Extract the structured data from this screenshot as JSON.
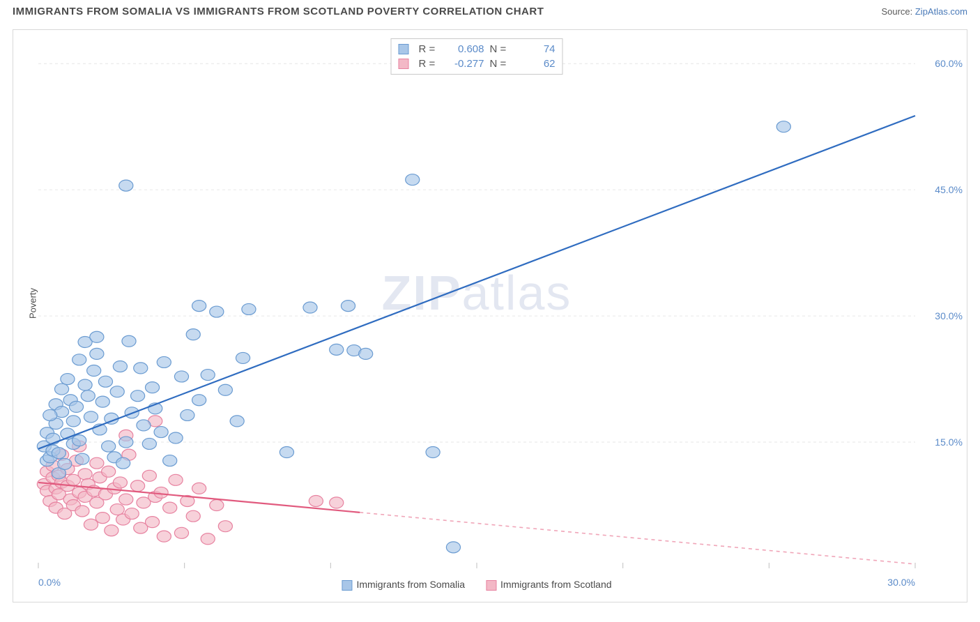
{
  "header": {
    "title": "IMMIGRANTS FROM SOMALIA VS IMMIGRANTS FROM SCOTLAND POVERTY CORRELATION CHART",
    "source_prefix": "Source: ",
    "source_link": "ZipAtlas.com"
  },
  "watermark": {
    "zip": "ZIP",
    "atlas": "atlas"
  },
  "chart": {
    "type": "scatter",
    "ylabel": "Poverty",
    "xlim": [
      0,
      30
    ],
    "ylim": [
      0,
      63
    ],
    "x_ticks": [
      {
        "pos": 0,
        "label": "0.0%"
      },
      {
        "pos": 5,
        "label": ""
      },
      {
        "pos": 10,
        "label": ""
      },
      {
        "pos": 15,
        "label": ""
      },
      {
        "pos": 20,
        "label": ""
      },
      {
        "pos": 25,
        "label": ""
      },
      {
        "pos": 30,
        "label": "30.0%"
      }
    ],
    "y_ticks": [
      {
        "pos": 15,
        "label": "15.0%"
      },
      {
        "pos": 30,
        "label": "30.0%"
      },
      {
        "pos": 45,
        "label": "45.0%"
      },
      {
        "pos": 60,
        "label": "60.0%"
      }
    ],
    "grid_color": "#e6e6e6",
    "background_color": "#ffffff",
    "series": [
      {
        "name": "Immigrants from Somalia",
        "color_fill": "#a8c6e8",
        "color_stroke": "#6a9bd1",
        "line_color": "#2f6cc0",
        "line_dash_color": "#2f6cc0",
        "R": "0.608",
        "N": "74",
        "trend": {
          "x1": 0,
          "y1": 14.2,
          "x2": 30,
          "y2": 53.8,
          "solid_until_x": 30
        },
        "points": [
          [
            0.2,
            14.5
          ],
          [
            0.3,
            12.8
          ],
          [
            0.3,
            16.1
          ],
          [
            0.4,
            13.2
          ],
          [
            0.5,
            15.4
          ],
          [
            0.5,
            14.0
          ],
          [
            0.6,
            17.2
          ],
          [
            0.6,
            19.5
          ],
          [
            0.7,
            11.3
          ],
          [
            0.7,
            13.7
          ],
          [
            0.8,
            21.3
          ],
          [
            0.8,
            18.6
          ],
          [
            0.9,
            12.4
          ],
          [
            1.0,
            16.0
          ],
          [
            1.0,
            22.5
          ],
          [
            1.1,
            20.0
          ],
          [
            1.2,
            14.8
          ],
          [
            1.2,
            17.5
          ],
          [
            1.3,
            19.2
          ],
          [
            1.4,
            24.8
          ],
          [
            1.4,
            15.2
          ],
          [
            1.5,
            13.0
          ],
          [
            1.6,
            26.9
          ],
          [
            1.6,
            21.8
          ],
          [
            1.7,
            20.5
          ],
          [
            1.8,
            18.0
          ],
          [
            1.9,
            23.5
          ],
          [
            2.0,
            25.5
          ],
          [
            2.0,
            27.5
          ],
          [
            2.1,
            16.5
          ],
          [
            2.2,
            19.8
          ],
          [
            2.3,
            22.2
          ],
          [
            2.4,
            14.5
          ],
          [
            2.5,
            17.8
          ],
          [
            2.6,
            13.2
          ],
          [
            2.7,
            21.0
          ],
          [
            2.8,
            24.0
          ],
          [
            2.9,
            12.5
          ],
          [
            3.0,
            15.0
          ],
          [
            3.1,
            27.0
          ],
          [
            3.2,
            18.5
          ],
          [
            3.4,
            20.5
          ],
          [
            3.5,
            23.8
          ],
          [
            3.6,
            17.0
          ],
          [
            3.8,
            14.8
          ],
          [
            3.9,
            21.5
          ],
          [
            4.0,
            19.0
          ],
          [
            4.2,
            16.2
          ],
          [
            4.3,
            24.5
          ],
          [
            4.5,
            12.8
          ],
          [
            4.7,
            15.5
          ],
          [
            4.9,
            22.8
          ],
          [
            5.1,
            18.2
          ],
          [
            5.3,
            27.8
          ],
          [
            5.5,
            20.0
          ],
          [
            5.8,
            23.0
          ],
          [
            6.1,
            30.5
          ],
          [
            6.4,
            21.2
          ],
          [
            6.8,
            17.5
          ],
          [
            7.2,
            30.8
          ],
          [
            8.5,
            13.8
          ],
          [
            9.3,
            31.0
          ],
          [
            10.2,
            26.0
          ],
          [
            10.6,
            31.2
          ],
          [
            10.8,
            25.9
          ],
          [
            11.2,
            25.5
          ],
          [
            12.8,
            46.2
          ],
          [
            13.5,
            13.8
          ],
          [
            14.2,
            2.5
          ],
          [
            3.0,
            45.5
          ],
          [
            25.5,
            52.5
          ],
          [
            5.5,
            31.2
          ],
          [
            7.0,
            25.0
          ],
          [
            0.4,
            18.2
          ]
        ]
      },
      {
        "name": "Immigrants from Scotland",
        "color_fill": "#f3b8c6",
        "color_stroke": "#e782a0",
        "line_color": "#e15a7e",
        "line_dash_color": "#f0a5b8",
        "R": "-0.277",
        "N": "62",
        "trend": {
          "x1": 0,
          "y1": 10.2,
          "x2": 30,
          "y2": 0.5,
          "solid_until_x": 11
        },
        "points": [
          [
            0.2,
            10.0
          ],
          [
            0.3,
            9.2
          ],
          [
            0.3,
            11.5
          ],
          [
            0.4,
            8.0
          ],
          [
            0.5,
            10.8
          ],
          [
            0.5,
            12.2
          ],
          [
            0.6,
            9.5
          ],
          [
            0.6,
            7.2
          ],
          [
            0.7,
            11.0
          ],
          [
            0.7,
            8.8
          ],
          [
            0.8,
            10.2
          ],
          [
            0.8,
            13.5
          ],
          [
            0.9,
            6.5
          ],
          [
            1.0,
            9.8
          ],
          [
            1.0,
            11.8
          ],
          [
            1.1,
            8.2
          ],
          [
            1.2,
            10.5
          ],
          [
            1.2,
            7.5
          ],
          [
            1.3,
            12.8
          ],
          [
            1.4,
            9.0
          ],
          [
            1.4,
            14.5
          ],
          [
            1.5,
            6.8
          ],
          [
            1.6,
            11.2
          ],
          [
            1.6,
            8.5
          ],
          [
            1.7,
            10.0
          ],
          [
            1.8,
            5.2
          ],
          [
            1.9,
            9.2
          ],
          [
            2.0,
            12.5
          ],
          [
            2.0,
            7.8
          ],
          [
            2.1,
            10.8
          ],
          [
            2.2,
            6.0
          ],
          [
            2.3,
            8.8
          ],
          [
            2.4,
            11.5
          ],
          [
            2.5,
            4.5
          ],
          [
            2.6,
            9.5
          ],
          [
            2.7,
            7.0
          ],
          [
            2.8,
            10.2
          ],
          [
            2.9,
            5.8
          ],
          [
            3.0,
            8.2
          ],
          [
            3.1,
            13.5
          ],
          [
            3.2,
            6.5
          ],
          [
            3.4,
            9.8
          ],
          [
            3.5,
            4.8
          ],
          [
            3.6,
            7.8
          ],
          [
            3.8,
            11.0
          ],
          [
            3.9,
            5.5
          ],
          [
            4.0,
            8.5
          ],
          [
            4.2,
            9.0
          ],
          [
            4.3,
            3.8
          ],
          [
            4.5,
            7.2
          ],
          [
            4.7,
            10.5
          ],
          [
            4.9,
            4.2
          ],
          [
            5.1,
            8.0
          ],
          [
            5.3,
            6.2
          ],
          [
            5.5,
            9.5
          ],
          [
            5.8,
            3.5
          ],
          [
            6.1,
            7.5
          ],
          [
            6.4,
            5.0
          ],
          [
            4.0,
            17.5
          ],
          [
            9.5,
            8.0
          ],
          [
            10.2,
            7.8
          ],
          [
            3.0,
            15.8
          ]
        ]
      }
    ]
  },
  "bottom_legend": {
    "items": [
      {
        "label": "Immigrants from Somalia",
        "fill": "#a8c6e8",
        "stroke": "#6a9bd1"
      },
      {
        "label": "Immigrants from Scotland",
        "fill": "#f3b8c6",
        "stroke": "#e782a0"
      }
    ]
  }
}
